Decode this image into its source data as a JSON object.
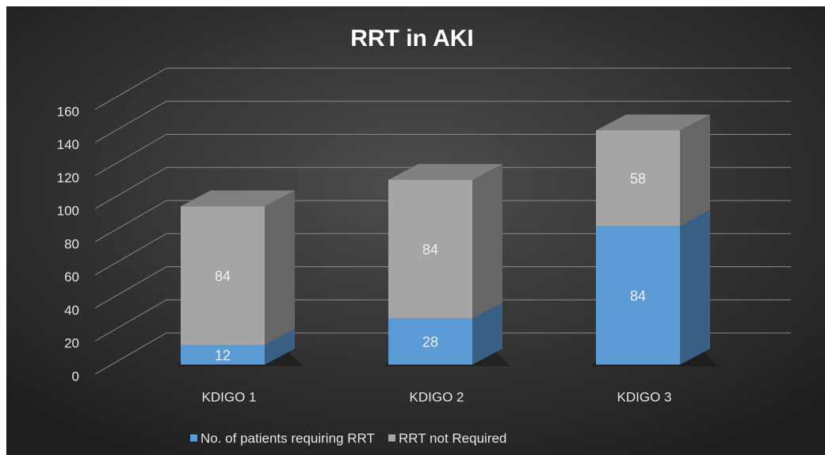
{
  "chart_data": {
    "type": "bar3d_stacked",
    "title": "RRT in AKI",
    "categories": [
      "KDIGO 1",
      "KDIGO 2",
      "KDIGO 3"
    ],
    "series": [
      {
        "name": "No. of patients requiring RRT",
        "color": "#5b9bd5",
        "values": [
          12,
          28,
          84
        ]
      },
      {
        "name": "RRT not Required",
        "color": "#a5a5a5",
        "values": [
          84,
          84,
          58
        ]
      }
    ],
    "ylim": [
      0,
      160
    ],
    "yticks": [
      0,
      20,
      40,
      60,
      80,
      100,
      120,
      140,
      160
    ],
    "grid": true,
    "legend": "bottom"
  }
}
